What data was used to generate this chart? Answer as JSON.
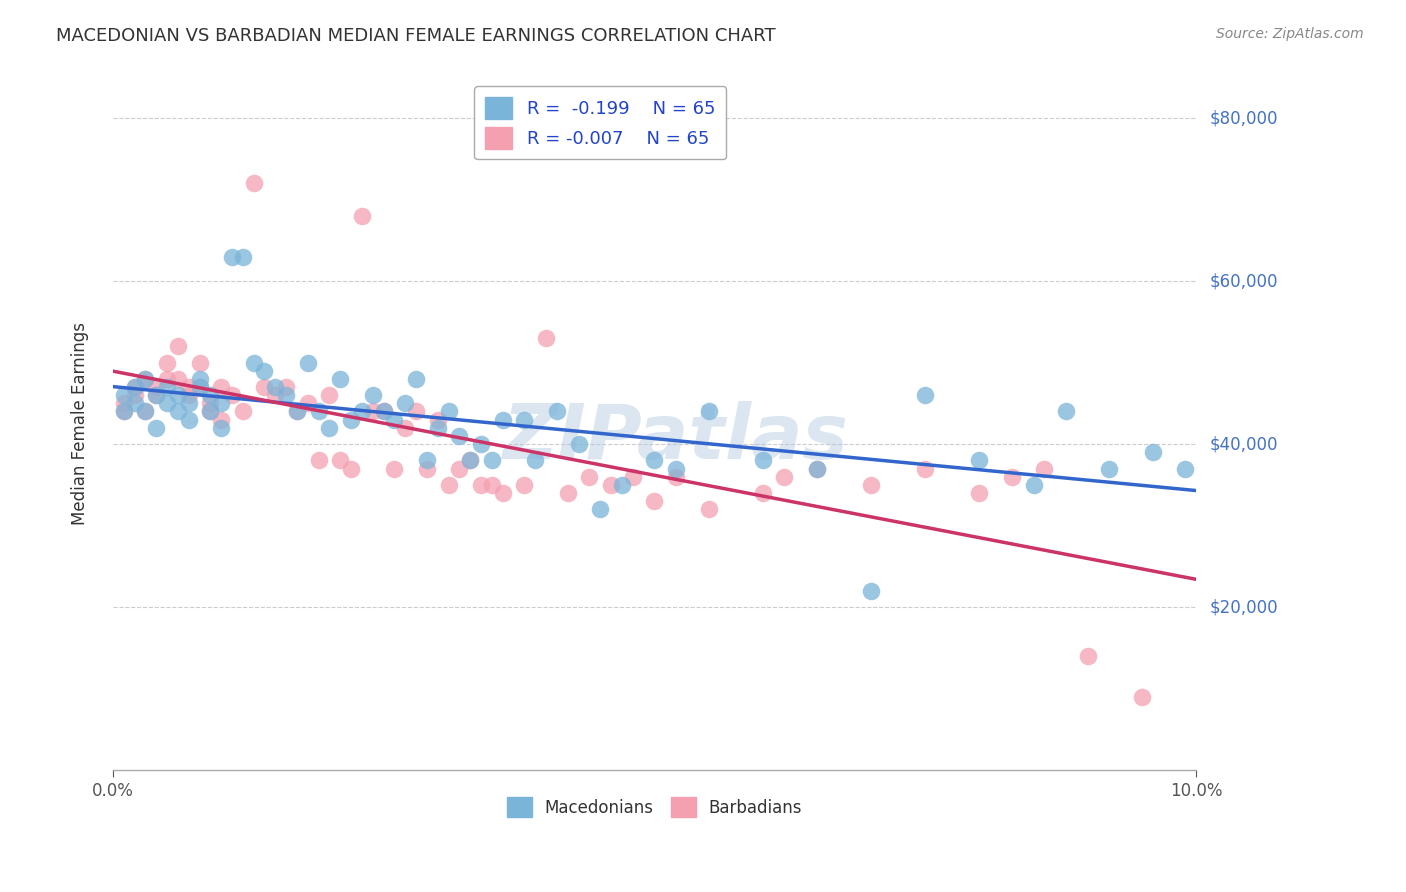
{
  "title": "MACEDONIAN VS BARBADIAN MEDIAN FEMALE EARNINGS CORRELATION CHART",
  "source": "Source: ZipAtlas.com",
  "ylabel": "Median Female Earnings",
  "y_ticks": [
    20000,
    40000,
    60000,
    80000
  ],
  "y_tick_labels": [
    "$20,000",
    "$40,000",
    "$60,000",
    "$80,000"
  ],
  "xlim": [
    0.0,
    0.1
  ],
  "ylim": [
    0,
    85000
  ],
  "watermark": "ZIPatlas",
  "legend_r_blue": "R =  -0.199",
  "legend_n_blue": "N = 65",
  "legend_r_pink": "R = -0.007",
  "legend_n_pink": "N = 65",
  "blue_color": "#7ab4d8",
  "pink_color": "#f4a0b0",
  "line_blue": "#3366cc",
  "line_pink": "#cc3366",
  "macedonian_x": [
    0.001,
    0.001,
    0.002,
    0.002,
    0.003,
    0.003,
    0.004,
    0.004,
    0.005,
    0.005,
    0.006,
    0.006,
    0.007,
    0.007,
    0.008,
    0.008,
    0.009,
    0.009,
    0.01,
    0.01,
    0.011,
    0.012,
    0.013,
    0.014,
    0.015,
    0.016,
    0.017,
    0.018,
    0.019,
    0.02,
    0.021,
    0.022,
    0.023,
    0.024,
    0.025,
    0.026,
    0.027,
    0.028,
    0.029,
    0.03,
    0.031,
    0.032,
    0.033,
    0.034,
    0.035,
    0.036,
    0.038,
    0.039,
    0.041,
    0.043,
    0.045,
    0.047,
    0.05,
    0.052,
    0.055,
    0.06,
    0.065,
    0.07,
    0.075,
    0.08,
    0.085,
    0.088,
    0.092,
    0.096,
    0.099
  ],
  "macedonian_y": [
    44000,
    46000,
    47000,
    45000,
    48000,
    44000,
    46000,
    42000,
    45000,
    47000,
    44000,
    46000,
    43000,
    45000,
    47000,
    48000,
    44000,
    46000,
    42000,
    45000,
    63000,
    63000,
    50000,
    49000,
    47000,
    46000,
    44000,
    50000,
    44000,
    42000,
    48000,
    43000,
    44000,
    46000,
    44000,
    43000,
    45000,
    48000,
    38000,
    42000,
    44000,
    41000,
    38000,
    40000,
    38000,
    43000,
    43000,
    38000,
    44000,
    40000,
    32000,
    35000,
    38000,
    37000,
    44000,
    38000,
    37000,
    22000,
    46000,
    38000,
    35000,
    44000,
    37000,
    39000,
    37000
  ],
  "barbadian_x": [
    0.001,
    0.001,
    0.002,
    0.002,
    0.003,
    0.003,
    0.004,
    0.004,
    0.005,
    0.005,
    0.006,
    0.006,
    0.007,
    0.007,
    0.008,
    0.008,
    0.009,
    0.009,
    0.01,
    0.01,
    0.011,
    0.012,
    0.013,
    0.014,
    0.015,
    0.016,
    0.017,
    0.018,
    0.019,
    0.02,
    0.021,
    0.022,
    0.023,
    0.024,
    0.025,
    0.026,
    0.027,
    0.028,
    0.029,
    0.03,
    0.031,
    0.032,
    0.033,
    0.034,
    0.035,
    0.036,
    0.038,
    0.04,
    0.042,
    0.044,
    0.046,
    0.048,
    0.05,
    0.052,
    0.055,
    0.06,
    0.062,
    0.065,
    0.07,
    0.075,
    0.08,
    0.083,
    0.086,
    0.09,
    0.095
  ],
  "barbadian_y": [
    44000,
    45000,
    46000,
    47000,
    44000,
    48000,
    47000,
    46000,
    48000,
    50000,
    52000,
    48000,
    47000,
    46000,
    50000,
    47000,
    44000,
    45000,
    47000,
    43000,
    46000,
    44000,
    72000,
    47000,
    46000,
    47000,
    44000,
    45000,
    38000,
    46000,
    38000,
    37000,
    68000,
    44000,
    44000,
    37000,
    42000,
    44000,
    37000,
    43000,
    35000,
    37000,
    38000,
    35000,
    35000,
    34000,
    35000,
    53000,
    34000,
    36000,
    35000,
    36000,
    33000,
    36000,
    32000,
    34000,
    36000,
    37000,
    35000,
    37000,
    34000,
    36000,
    37000,
    14000,
    9000
  ]
}
